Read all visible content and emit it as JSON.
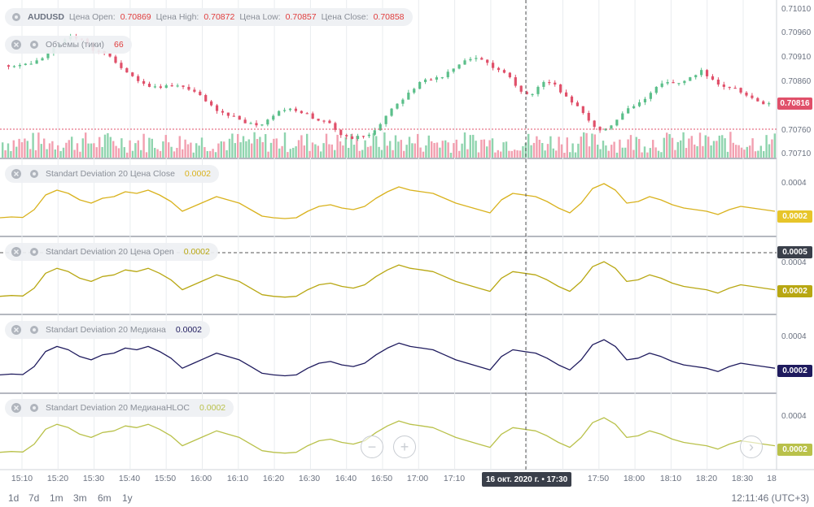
{
  "main_legend": {
    "symbol": "AUDUSD",
    "open_label": "Цена Open:",
    "open": "0.70869",
    "high_label": "Цена High:",
    "high": "0.70872",
    "low_label": "Цена Low:",
    "low": "0.70857",
    "close_label": "Цена Close:",
    "close": "0.70858"
  },
  "volume_legend": {
    "label": "Объемы (тики)",
    "value": "66"
  },
  "indicators": [
    {
      "label": "Standart Deviation 20 Цена Close",
      "value": "0.0002",
      "color": "#d9b21d"
    },
    {
      "label": "Standart Deviation 20 Цена Open",
      "value": "0.0002",
      "color": "#b8a712"
    },
    {
      "label": "Standart Deviation 20 Медиана",
      "value": "0.0002",
      "color": "#1f1b5e"
    },
    {
      "label": "Standart Deviation 20 МедианаHLOC",
      "value": "0.0002",
      "color": "#b9c14a"
    }
  ],
  "price_axis": [
    "0.71010",
    "0.70960",
    "0.70910",
    "0.70860",
    "0.70760",
    "0.70710"
  ],
  "price_badge": "0.70816",
  "indicator_axis": [
    "0.0004",
    "0.0004",
    "0.0004",
    "0.0004"
  ],
  "indicator_badges": [
    "0.0002",
    "0.0002",
    "0.0002",
    "0.0002"
  ],
  "crosshair_value": "0.0005",
  "crosshair_time": "16 окт. 2020 г. • 17:30",
  "time_axis": [
    "15:10",
    "15:20",
    "15:30",
    "15:40",
    "15:50",
    "16:00",
    "16:10",
    "16:20",
    "16:30",
    "16:40",
    "16:50",
    "17:00",
    "17:10",
    "17:50",
    "18:00",
    "18:10",
    "18:20",
    "18:30",
    "18"
  ],
  "timeframes": [
    "1d",
    "7d",
    "1m",
    "3m",
    "6m",
    "1y"
  ],
  "clock": "12:11:46 (UTC+3)",
  "colors": {
    "up": "#5bbf8a",
    "down": "#e0506a",
    "grid": "#e9ecef",
    "crosshair": "#555555"
  },
  "chart_data": {
    "type": "candlestick",
    "series_price": [
      0.70895,
      0.70893,
      0.70898,
      0.70905,
      0.7092,
      0.7094,
      0.70955,
      0.7095,
      0.70925,
      0.7092,
      0.709,
      0.7088,
      0.70862,
      0.7085,
      0.70848,
      0.70852,
      0.7085,
      0.7084,
      0.7082,
      0.708,
      0.7079,
      0.70782,
      0.70775,
      0.70772,
      0.7079,
      0.70802,
      0.708,
      0.70795,
      0.7078,
      0.70775,
      0.7075,
      0.70742,
      0.70748,
      0.7076,
      0.7079,
      0.70815,
      0.70838,
      0.7086,
      0.70865,
      0.7087,
      0.70888,
      0.70905,
      0.7091,
      0.709,
      0.70885,
      0.7087,
      0.7084,
      0.70835,
      0.7086,
      0.70855,
      0.7083,
      0.7081,
      0.7078,
      0.7076,
      0.7077,
      0.70795,
      0.7081,
      0.70825,
      0.7085,
      0.7086,
      0.70858,
      0.7087,
      0.70885,
      0.70865,
      0.7085,
      0.70848,
      0.70832,
      0.7082,
      0.70816
    ]
  }
}
